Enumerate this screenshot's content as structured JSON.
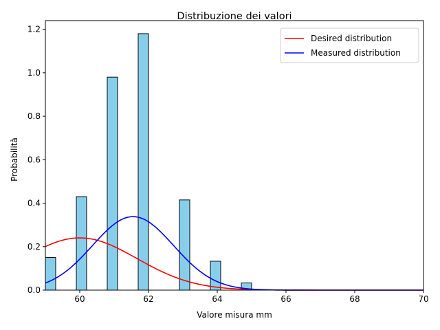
{
  "chart_data": {
    "type": "bar",
    "title": "Distribuzione dei valori",
    "xlabel": "Valore misura mm",
    "ylabel": "Probabilità",
    "xlim": [
      59,
      70
    ],
    "ylim": [
      0,
      1.24
    ],
    "x_ticks": [
      "60",
      "62",
      "64",
      "66",
      "68",
      "70"
    ],
    "y_ticks": [
      "0.0",
      "0.2",
      "0.4",
      "0.6",
      "0.8",
      "1.0",
      "1.2"
    ],
    "grid": false,
    "legend_position": "top-right",
    "histogram": {
      "color": "#87ceeb",
      "edge_color": "#000000",
      "bins": [
        {
          "x0": 59.0,
          "x1": 59.3,
          "value": 0.15
        },
        {
          "x0": 59.9,
          "x1": 60.2,
          "value": 0.43
        },
        {
          "x0": 60.8,
          "x1": 61.1,
          "value": 0.98
        },
        {
          "x0": 61.7,
          "x1": 62.0,
          "value": 1.18
        },
        {
          "x0": 62.9,
          "x1": 63.2,
          "value": 0.415
        },
        {
          "x0": 63.8,
          "x1": 64.1,
          "value": 0.133
        },
        {
          "x0": 64.7,
          "x1": 65.0,
          "value": 0.033
        }
      ]
    },
    "series": [
      {
        "name": "Desired distribution",
        "color": "#ff0000",
        "mean": 60.0,
        "std": 1.66
      },
      {
        "name": "Measured distribution",
        "color": "#0000ff",
        "mean": 61.55,
        "std": 1.18
      }
    ]
  }
}
